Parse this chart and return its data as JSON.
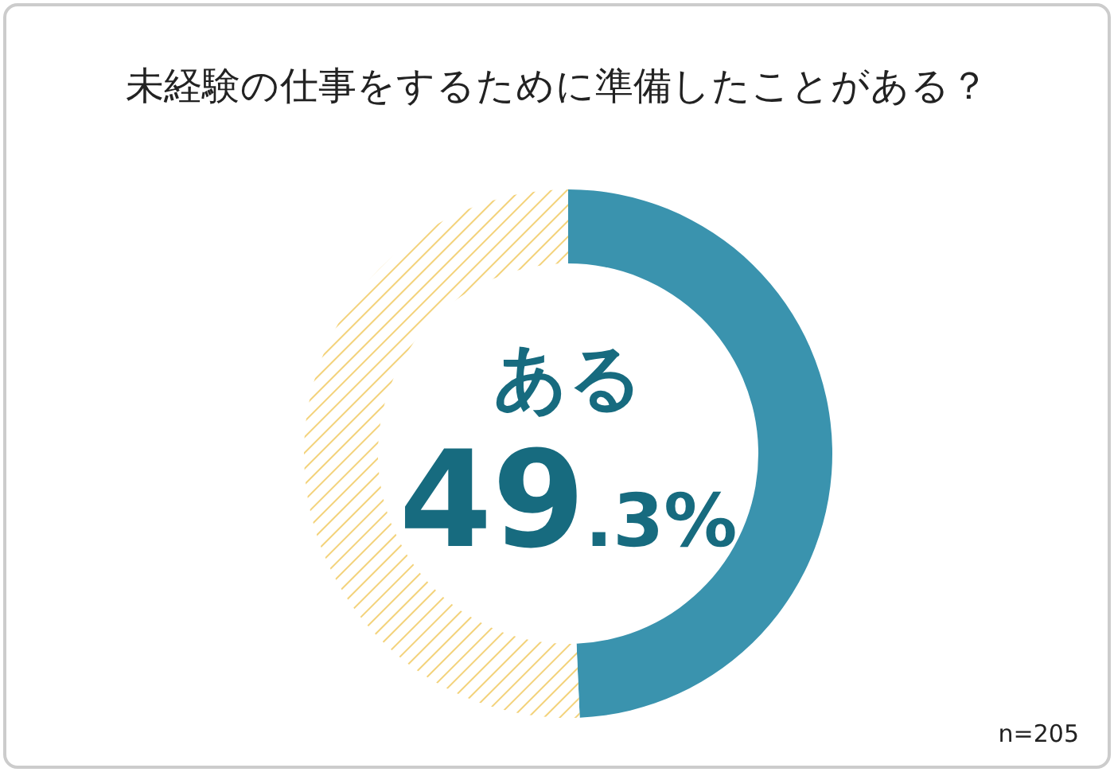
{
  "chart_data": {
    "type": "donut",
    "title": "未経験の仕事をするために準備したことがある？",
    "categories": [
      "ある",
      null
    ],
    "values": [
      49.3,
      50.7
    ],
    "colors": [
      "#3a93ae",
      "#f3d27a"
    ],
    "value_labels": [
      "49.3%",
      null
    ],
    "annotations": [
      "n=205"
    ]
  }
}
